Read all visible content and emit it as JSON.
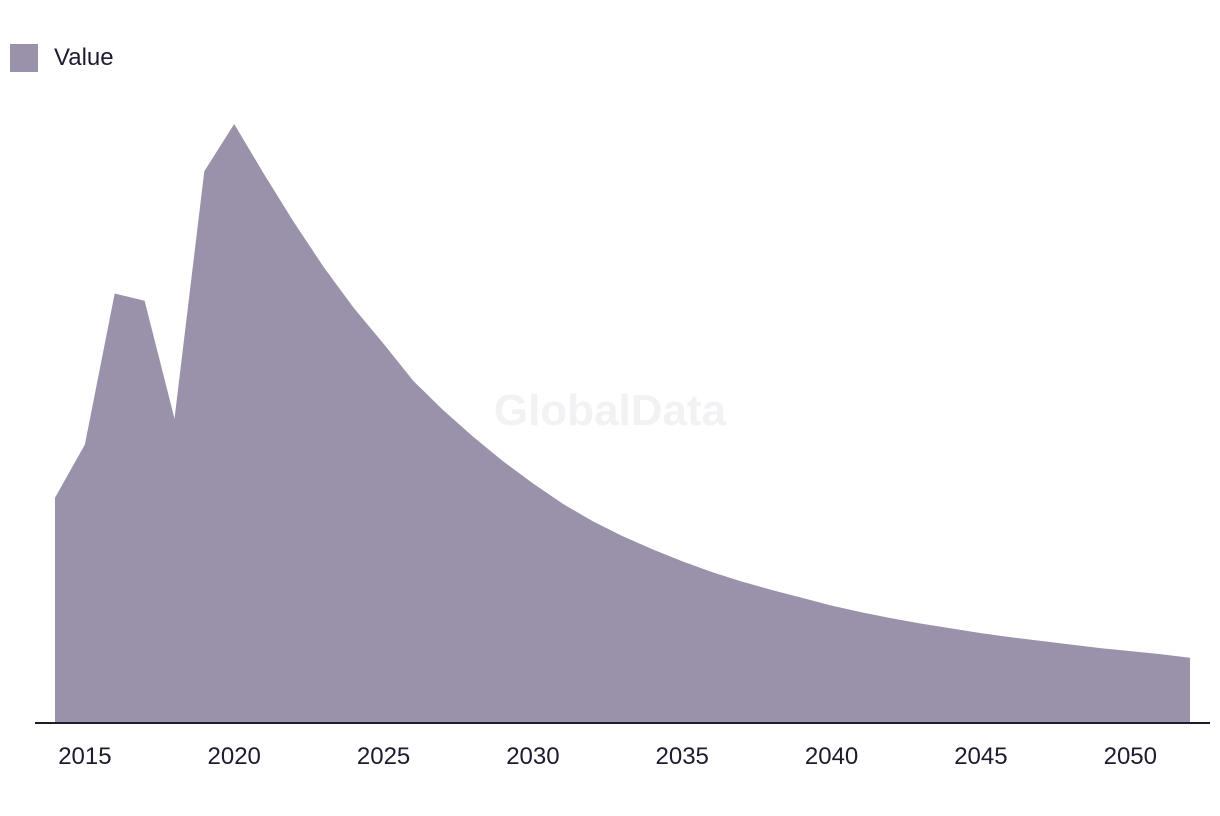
{
  "watermark": "GlobalData",
  "chart_data": {
    "type": "area",
    "title": "",
    "xlabel": "",
    "ylabel": "",
    "legend_position": "top-left",
    "grid": false,
    "color": "#9a91aa",
    "xlim": [
      2014,
      2052
    ],
    "ylim": [
      0,
      100
    ],
    "x_ticks": [
      2015,
      2020,
      2025,
      2030,
      2035,
      2040,
      2045,
      2050
    ],
    "x": [
      2014,
      2015,
      2016,
      2017,
      2018,
      2019,
      2020,
      2021,
      2022,
      2023,
      2024,
      2025,
      2026,
      2027,
      2028,
      2029,
      2030,
      2031,
      2032,
      2033,
      2034,
      2035,
      2036,
      2037,
      2038,
      2039,
      2040,
      2041,
      2042,
      2043,
      2044,
      2045,
      2046,
      2047,
      2048,
      2049,
      2050,
      2051,
      2052
    ],
    "series": [
      {
        "name": "Value",
        "values": [
          37.6,
          46.5,
          71.7,
          70.5,
          50.8,
          92.1,
          100,
          91.6,
          83.6,
          76.1,
          69.3,
          63.3,
          57.1,
          52.2,
          47.8,
          43.7,
          40.0,
          36.6,
          33.7,
          31.2,
          29.0,
          27.0,
          25.2,
          23.6,
          22.2,
          20.9,
          19.6,
          18.5,
          17.5,
          16.6,
          15.8,
          15.0,
          14.3,
          13.7,
          13.1,
          12.5,
          12.0,
          11.5,
          10.9
        ]
      }
    ]
  }
}
